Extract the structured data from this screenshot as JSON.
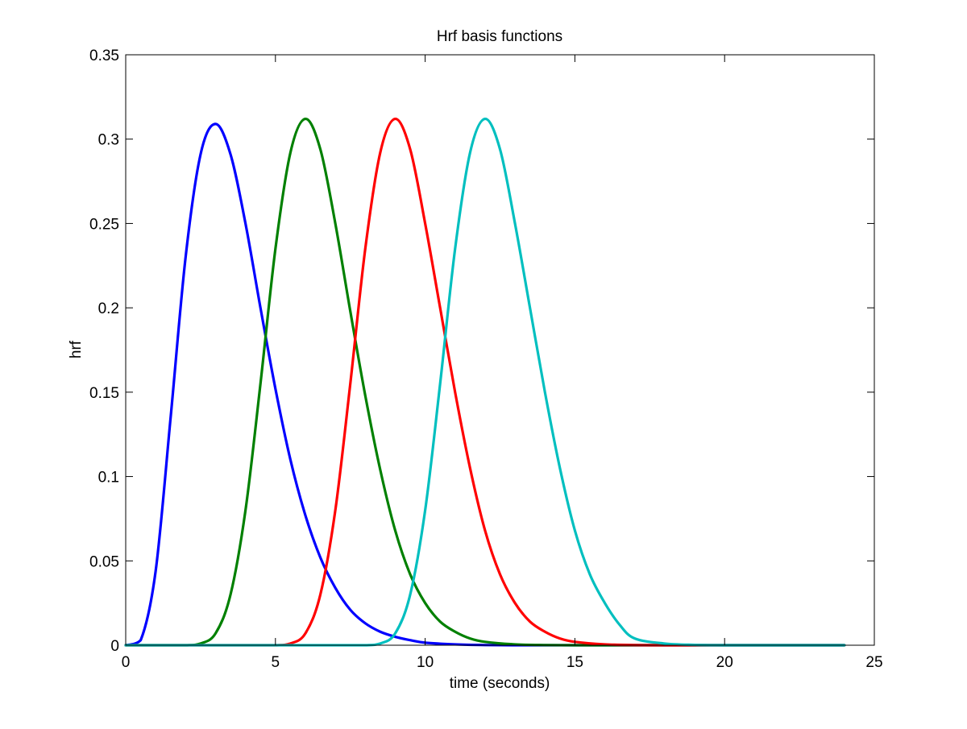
{
  "chart_data": {
    "type": "line",
    "title": "Hrf basis functions",
    "xlabel": "time (seconds)",
    "ylabel": "hrf",
    "xlim": [
      0,
      25
    ],
    "ylim": [
      0,
      0.35
    ],
    "xticks": [
      0,
      5,
      10,
      15,
      20,
      25
    ],
    "xtick_labels": [
      "0",
      "5",
      "10",
      "15",
      "20",
      "25"
    ],
    "yticks": [
      0,
      0.05,
      0.1,
      0.15,
      0.2,
      0.25,
      0.3,
      0.35
    ],
    "ytick_labels": [
      "0",
      "0.05",
      "0.1",
      "0.15",
      "0.2",
      "0.25",
      "0.3",
      "0.35"
    ],
    "grid": false,
    "legend": "none",
    "series": [
      {
        "color": "#0000ff",
        "x": [
          0,
          0.5,
          1,
          1.5,
          2,
          2.5,
          3,
          3.5,
          4,
          4.5,
          5,
          5.5,
          6,
          6.5,
          7,
          7.5,
          8,
          8.5,
          9,
          9.5,
          10,
          11,
          12,
          13,
          14,
          15,
          16,
          18,
          20,
          22,
          24
        ],
        "y": [
          0,
          0.003,
          0.044,
          0.135,
          0.23,
          0.291,
          0.309,
          0.291,
          0.25,
          0.2,
          0.152,
          0.11,
          0.077,
          0.052,
          0.034,
          0.021,
          0.013,
          0.008,
          0.005,
          0.003,
          0.0015,
          0.0005,
          0.0001,
          0,
          0,
          0,
          0,
          0,
          0,
          0,
          0
        ]
      },
      {
        "color": "#008000",
        "x": [
          0,
          1,
          2,
          2.5,
          3,
          3.5,
          4,
          4.5,
          5,
          5.5,
          6,
          6.5,
          7,
          7.5,
          8,
          8.5,
          9,
          9.5,
          10,
          10.5,
          11,
          11.5,
          12,
          13,
          14,
          15,
          16,
          18,
          20,
          22,
          24
        ],
        "y": [
          0,
          0,
          0,
          0.001,
          0.007,
          0.03,
          0.08,
          0.155,
          0.235,
          0.292,
          0.312,
          0.294,
          0.25,
          0.198,
          0.148,
          0.104,
          0.068,
          0.042,
          0.025,
          0.014,
          0.008,
          0.004,
          0.002,
          0.0005,
          0.0001,
          0,
          0,
          0,
          0,
          0,
          0
        ]
      },
      {
        "color": "#ff0000",
        "x": [
          0,
          2,
          4,
          5,
          5.5,
          6,
          6.5,
          7,
          7.5,
          8,
          8.5,
          9,
          9.5,
          10,
          10.5,
          11,
          11.5,
          12,
          12.5,
          13,
          13.5,
          14,
          14.5,
          15,
          16,
          17,
          18,
          20,
          22,
          24
        ],
        "y": [
          0,
          0,
          0,
          0,
          0.001,
          0.007,
          0.03,
          0.08,
          0.155,
          0.235,
          0.292,
          0.312,
          0.294,
          0.25,
          0.2,
          0.15,
          0.105,
          0.068,
          0.042,
          0.025,
          0.014,
          0.008,
          0.004,
          0.002,
          0.0005,
          0.0001,
          0,
          0,
          0,
          0
        ]
      },
      {
        "color": "#00bfbf",
        "x": [
          0,
          2,
          4,
          6,
          7,
          8,
          8.5,
          9,
          9.5,
          10,
          10.5,
          11,
          11.5,
          12,
          12.5,
          13,
          13.5,
          14,
          14.5,
          15,
          15.5,
          16,
          16.5,
          17,
          18,
          19,
          20,
          22,
          24
        ],
        "y": [
          0,
          0,
          0,
          0,
          0,
          0,
          0.001,
          0.007,
          0.03,
          0.08,
          0.155,
          0.235,
          0.292,
          0.312,
          0.294,
          0.25,
          0.2,
          0.15,
          0.105,
          0.068,
          0.042,
          0.025,
          0.012,
          0.004,
          0.001,
          0.0002,
          0,
          0,
          0
        ]
      }
    ]
  }
}
